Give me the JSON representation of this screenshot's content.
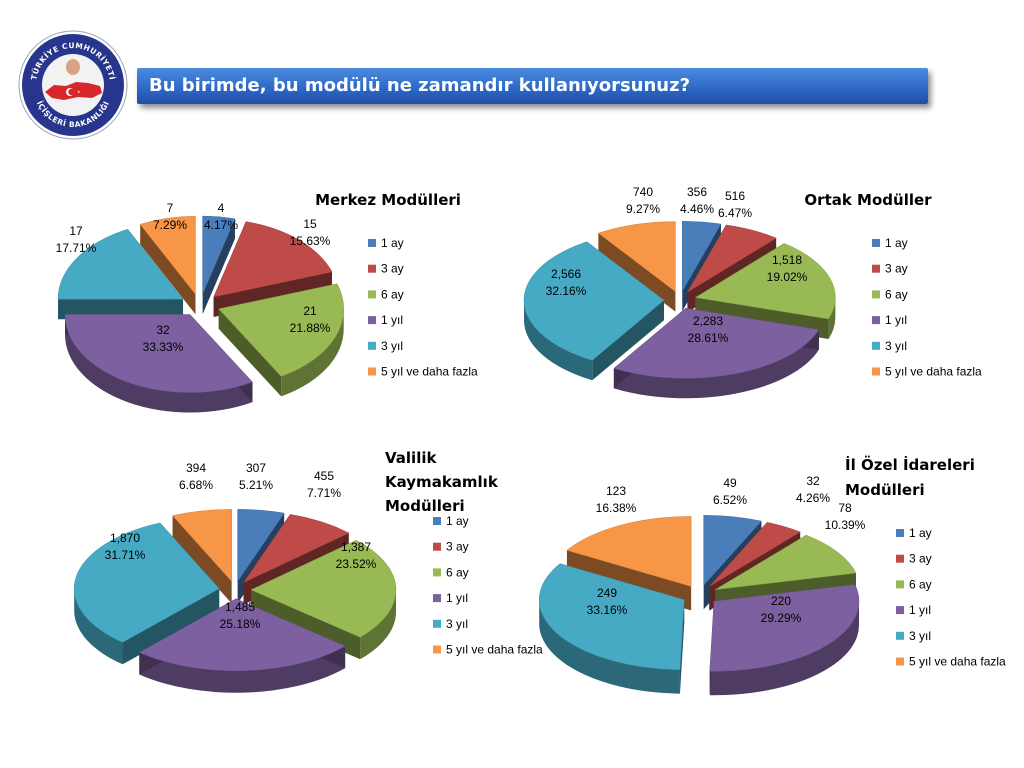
{
  "header": {
    "title": "Bu birimde, bu modülü ne zamandır kullanıyorsunuz?"
  },
  "logo": {
    "top_text": "TÜRKİYE CUMHURİYETİ",
    "bottom_text": "İÇİŞLERİ BAKANLIĞI"
  },
  "colors": {
    "1 ay": "#4a7ebb",
    "3 ay": "#be4b48",
    "6 ay": "#98b954",
    "1 yıl": "#7d60a0",
    "3 yıl": "#46aac5",
    "5 yıl ve daha fazla": "#f79646"
  },
  "chart_data": [
    {
      "type": "pie",
      "title": "Merkez Modülleri",
      "categories": [
        "1 ay",
        "3 ay",
        "6 ay",
        "1 yıl",
        "3 yıl",
        "5 yıl ve daha fazla"
      ],
      "values": [
        4,
        15,
        21,
        32,
        17,
        7
      ],
      "labels": [
        "4.17%",
        "15.63%",
        "21.88%",
        "33.33%",
        "17.71%",
        "7.29%"
      ],
      "legend": "right"
    },
    {
      "type": "pie",
      "title": "Ortak Modüller",
      "categories": [
        "1 ay",
        "3 ay",
        "6 ay",
        "1 yıl",
        "3 yıl",
        "5 yıl ve daha fazla"
      ],
      "values": [
        356,
        516,
        1518,
        2283,
        2566,
        740
      ],
      "value_labels": [
        "356",
        "516",
        "1,518",
        "2,283",
        "2,566",
        "740"
      ],
      "labels": [
        "4.46%",
        "6.47%",
        "19.02%",
        "28.61%",
        "32.16%",
        "9.27%"
      ],
      "legend": "right"
    },
    {
      "type": "pie",
      "title": [
        "Valilik",
        "Kaymakamlık",
        "Modülleri"
      ],
      "categories": [
        "1 ay",
        "3 ay",
        "6 ay",
        "1 yıl",
        "3 yıl",
        "5 yıl ve daha fazla"
      ],
      "values": [
        307,
        455,
        1387,
        1485,
        1870,
        394
      ],
      "value_labels": [
        "307",
        "455",
        "1,387",
        "1,485",
        "1,870",
        "394"
      ],
      "labels": [
        "5.21%",
        "7.71%",
        "23.52%",
        "25.18%",
        "31.71%",
        "6.68%"
      ],
      "legend": "right"
    },
    {
      "type": "pie",
      "title": [
        "İl Özel İdareleri",
        "Modülleri"
      ],
      "categories": [
        "1 ay",
        "3 ay",
        "6 ay",
        "1 yıl",
        "3 yıl",
        "5 yıl ve daha fazla"
      ],
      "values": [
        49,
        32,
        78,
        220,
        249,
        123
      ],
      "labels": [
        "6.52%",
        "4.26%",
        "10.39%",
        "29.29%",
        "33.16%",
        "16.38%"
      ],
      "legend": "right"
    }
  ]
}
